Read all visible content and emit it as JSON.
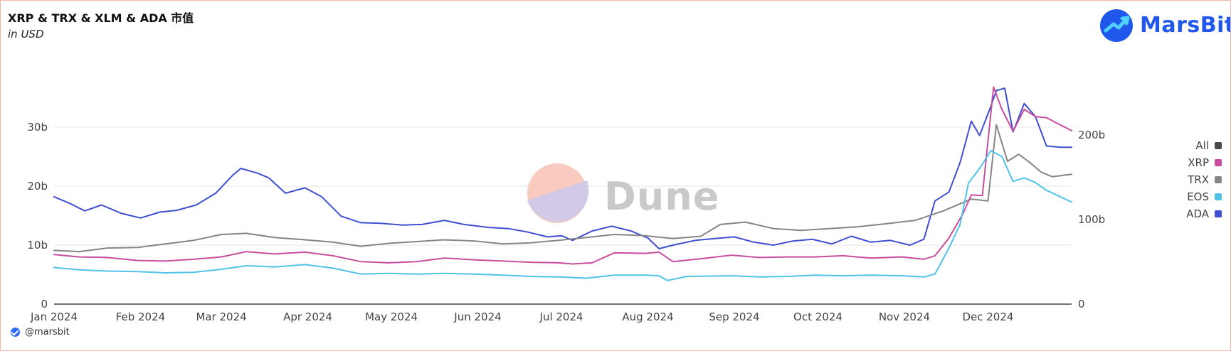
{
  "page": {
    "title": "XRP & TRX & XLM & ADA 市值",
    "subtitle": "in USD",
    "brand_name": "MarsBit",
    "watermark": "Dune",
    "handle": "@marsbit"
  },
  "colors": {
    "background": "#ffffff",
    "border": "#f2b7a8",
    "grid": "#e6e6e6",
    "axis": "#222222",
    "brand": "#1f58ea"
  },
  "chart_data": {
    "type": "line",
    "title": "XRP & TRX & XLM & ADA 市值",
    "subtitle": "in USD",
    "x_ticks": [
      "Jan 2024",
      "Feb 2024",
      "Mar 2024",
      "Apr 2024",
      "May 2024",
      "Jun 2024",
      "Jul 2024",
      "Aug 2024",
      "Sep 2024",
      "Oct 2024",
      "Nov 2024",
      "Dec 2024"
    ],
    "x_range": [
      "2024-01-01",
      "2024-12-31"
    ],
    "left_axis": {
      "ticks": [
        0,
        10,
        20,
        30
      ],
      "tick_labels": [
        "0",
        "10b",
        "20b",
        "30b"
      ],
      "range": [
        0,
        30
      ]
    },
    "right_axis": {
      "ticks": [
        0,
        100,
        200
      ],
      "tick_labels": [
        "0",
        "100b",
        "200b"
      ],
      "range": [
        0,
        200
      ]
    },
    "grid": true,
    "legend_position": "right",
    "legend": [
      {
        "name": "All",
        "color": "#4b4b4b"
      },
      {
        "name": "XRP",
        "color": "#c94d9d"
      },
      {
        "name": "TRX",
        "color": "#858585"
      },
      {
        "name": "EOS",
        "color": "#4fc3e8"
      },
      {
        "name": "ADA",
        "color": "#3f4fd1"
      }
    ],
    "series": [
      {
        "name": "ADA",
        "color": "#3f4fd1",
        "axis": "left",
        "points": [
          [
            "2024-01-01",
            18.2
          ],
          [
            "2024-01-07",
            17.0
          ],
          [
            "2024-01-12",
            15.8
          ],
          [
            "2024-01-18",
            16.8
          ],
          [
            "2024-01-25",
            15.4
          ],
          [
            "2024-02-01",
            14.6
          ],
          [
            "2024-02-08",
            15.6
          ],
          [
            "2024-02-14",
            15.9
          ],
          [
            "2024-02-21",
            16.8
          ],
          [
            "2024-02-28",
            18.8
          ],
          [
            "2024-03-05",
            21.8
          ],
          [
            "2024-03-08",
            23.0
          ],
          [
            "2024-03-14",
            22.2
          ],
          [
            "2024-03-18",
            21.4
          ],
          [
            "2024-03-24",
            18.8
          ],
          [
            "2024-03-31",
            19.7
          ],
          [
            "2024-04-06",
            18.2
          ],
          [
            "2024-04-13",
            14.9
          ],
          [
            "2024-04-20",
            13.8
          ],
          [
            "2024-04-27",
            13.7
          ],
          [
            "2024-05-05",
            13.4
          ],
          [
            "2024-05-12",
            13.5
          ],
          [
            "2024-05-20",
            14.2
          ],
          [
            "2024-05-27",
            13.5
          ],
          [
            "2024-06-05",
            13.0
          ],
          [
            "2024-06-12",
            12.8
          ],
          [
            "2024-06-19",
            12.2
          ],
          [
            "2024-06-26",
            11.4
          ],
          [
            "2024-07-01",
            11.6
          ],
          [
            "2024-07-05",
            10.8
          ],
          [
            "2024-07-12",
            12.4
          ],
          [
            "2024-07-19",
            13.2
          ],
          [
            "2024-07-26",
            12.4
          ],
          [
            "2024-08-01",
            11.2
          ],
          [
            "2024-08-05",
            9.4
          ],
          [
            "2024-08-10",
            10.0
          ],
          [
            "2024-08-18",
            10.8
          ],
          [
            "2024-08-25",
            11.1
          ],
          [
            "2024-09-01",
            11.4
          ],
          [
            "2024-09-08",
            10.5
          ],
          [
            "2024-09-15",
            10.0
          ],
          [
            "2024-09-22",
            10.7
          ],
          [
            "2024-09-29",
            11.0
          ],
          [
            "2024-10-06",
            10.2
          ],
          [
            "2024-10-13",
            11.5
          ],
          [
            "2024-10-20",
            10.5
          ],
          [
            "2024-10-27",
            10.8
          ],
          [
            "2024-11-03",
            10.0
          ],
          [
            "2024-11-08",
            11.0
          ],
          [
            "2024-11-12",
            17.5
          ],
          [
            "2024-11-17",
            19.0
          ],
          [
            "2024-11-21",
            24.0
          ],
          [
            "2024-11-25",
            31.0
          ],
          [
            "2024-11-28",
            28.6
          ],
          [
            "2024-12-02",
            33.5
          ],
          [
            "2024-12-04",
            36.2
          ],
          [
            "2024-12-07",
            36.6
          ],
          [
            "2024-12-10",
            29.2
          ],
          [
            "2024-12-14",
            34.0
          ],
          [
            "2024-12-18",
            31.8
          ],
          [
            "2024-12-22",
            26.8
          ],
          [
            "2024-12-27",
            26.6
          ],
          [
            "2024-12-31",
            26.6
          ]
        ]
      },
      {
        "name": "TRX",
        "color": "#858585",
        "axis": "left",
        "points": [
          [
            "2024-01-01",
            9.1
          ],
          [
            "2024-01-10",
            8.9
          ],
          [
            "2024-01-20",
            9.5
          ],
          [
            "2024-01-31",
            9.6
          ],
          [
            "2024-02-10",
            10.2
          ],
          [
            "2024-02-20",
            10.8
          ],
          [
            "2024-03-01",
            11.8
          ],
          [
            "2024-03-10",
            12.0
          ],
          [
            "2024-03-20",
            11.3
          ],
          [
            "2024-03-31",
            10.9
          ],
          [
            "2024-04-10",
            10.5
          ],
          [
            "2024-04-20",
            9.8
          ],
          [
            "2024-04-30",
            10.3
          ],
          [
            "2024-05-10",
            10.6
          ],
          [
            "2024-05-20",
            10.9
          ],
          [
            "2024-05-31",
            10.7
          ],
          [
            "2024-06-10",
            10.2
          ],
          [
            "2024-06-20",
            10.4
          ],
          [
            "2024-06-30",
            10.8
          ],
          [
            "2024-07-10",
            11.3
          ],
          [
            "2024-07-20",
            11.8
          ],
          [
            "2024-07-31",
            11.6
          ],
          [
            "2024-08-10",
            11.1
          ],
          [
            "2024-08-20",
            11.5
          ],
          [
            "2024-08-27",
            13.5
          ],
          [
            "2024-09-05",
            13.9
          ],
          [
            "2024-09-15",
            12.8
          ],
          [
            "2024-09-25",
            12.5
          ],
          [
            "2024-10-05",
            12.8
          ],
          [
            "2024-10-15",
            13.1
          ],
          [
            "2024-10-25",
            13.6
          ],
          [
            "2024-11-05",
            14.2
          ],
          [
            "2024-11-15",
            15.8
          ],
          [
            "2024-11-25",
            17.8
          ],
          [
            "2024-12-01",
            17.5
          ],
          [
            "2024-12-04",
            30.4
          ],
          [
            "2024-12-08",
            24.2
          ],
          [
            "2024-12-12",
            25.4
          ],
          [
            "2024-12-16",
            24.0
          ],
          [
            "2024-12-20",
            22.4
          ],
          [
            "2024-12-24",
            21.6
          ],
          [
            "2024-12-31",
            22.0
          ]
        ]
      },
      {
        "name": "XRP",
        "color": "#c94d9d",
        "axis": "left",
        "points": [
          [
            "2024-01-01",
            8.4
          ],
          [
            "2024-01-10",
            8.0
          ],
          [
            "2024-01-20",
            7.9
          ],
          [
            "2024-01-31",
            7.4
          ],
          [
            "2024-02-10",
            7.3
          ],
          [
            "2024-02-20",
            7.6
          ],
          [
            "2024-03-01",
            8.0
          ],
          [
            "2024-03-10",
            8.9
          ],
          [
            "2024-03-20",
            8.5
          ],
          [
            "2024-03-31",
            8.8
          ],
          [
            "2024-04-10",
            8.2
          ],
          [
            "2024-04-20",
            7.2
          ],
          [
            "2024-04-30",
            7.0
          ],
          [
            "2024-05-10",
            7.2
          ],
          [
            "2024-05-20",
            7.8
          ],
          [
            "2024-05-31",
            7.5
          ],
          [
            "2024-06-10",
            7.3
          ],
          [
            "2024-06-20",
            7.1
          ],
          [
            "2024-06-30",
            7.0
          ],
          [
            "2024-07-05",
            6.8
          ],
          [
            "2024-07-12",
            7.0
          ],
          [
            "2024-07-20",
            8.7
          ],
          [
            "2024-07-31",
            8.6
          ],
          [
            "2024-08-05",
            8.8
          ],
          [
            "2024-08-10",
            7.2
          ],
          [
            "2024-08-20",
            7.7
          ],
          [
            "2024-08-31",
            8.3
          ],
          [
            "2024-09-10",
            7.9
          ],
          [
            "2024-09-20",
            8.0
          ],
          [
            "2024-09-30",
            8.0
          ],
          [
            "2024-10-10",
            8.2
          ],
          [
            "2024-10-20",
            7.8
          ],
          [
            "2024-10-31",
            8.0
          ],
          [
            "2024-11-08",
            7.6
          ],
          [
            "2024-11-12",
            8.2
          ],
          [
            "2024-11-17",
            11.2
          ],
          [
            "2024-11-22",
            15.3
          ],
          [
            "2024-11-25",
            18.5
          ],
          [
            "2024-11-29",
            18.4
          ],
          [
            "2024-12-03",
            36.8
          ],
          [
            "2024-12-06",
            33.0
          ],
          [
            "2024-12-10",
            29.3
          ],
          [
            "2024-12-14",
            33.0
          ],
          [
            "2024-12-18",
            31.8
          ],
          [
            "2024-12-22",
            31.6
          ],
          [
            "2024-12-26",
            30.6
          ],
          [
            "2024-12-31",
            29.4
          ]
        ]
      },
      {
        "name": "EOS",
        "color": "#4fc3e8",
        "axis": "left",
        "points": [
          [
            "2024-01-01",
            6.2
          ],
          [
            "2024-01-10",
            5.8
          ],
          [
            "2024-01-20",
            5.6
          ],
          [
            "2024-01-31",
            5.5
          ],
          [
            "2024-02-10",
            5.3
          ],
          [
            "2024-02-20",
            5.4
          ],
          [
            "2024-03-01",
            5.9
          ],
          [
            "2024-03-10",
            6.5
          ],
          [
            "2024-03-20",
            6.3
          ],
          [
            "2024-03-31",
            6.7
          ],
          [
            "2024-04-10",
            6.1
          ],
          [
            "2024-04-20",
            5.1
          ],
          [
            "2024-04-30",
            5.2
          ],
          [
            "2024-05-10",
            5.1
          ],
          [
            "2024-05-20",
            5.2
          ],
          [
            "2024-05-31",
            5.1
          ],
          [
            "2024-06-10",
            4.9
          ],
          [
            "2024-06-20",
            4.7
          ],
          [
            "2024-06-30",
            4.6
          ],
          [
            "2024-07-10",
            4.4
          ],
          [
            "2024-07-20",
            4.9
          ],
          [
            "2024-07-31",
            4.9
          ],
          [
            "2024-08-05",
            4.8
          ],
          [
            "2024-08-08",
            4.0
          ],
          [
            "2024-08-15",
            4.7
          ],
          [
            "2024-08-31",
            4.8
          ],
          [
            "2024-09-10",
            4.6
          ],
          [
            "2024-09-20",
            4.7
          ],
          [
            "2024-09-30",
            4.9
          ],
          [
            "2024-10-10",
            4.8
          ],
          [
            "2024-10-20",
            4.9
          ],
          [
            "2024-10-31",
            4.8
          ],
          [
            "2024-11-08",
            4.6
          ],
          [
            "2024-11-12",
            5.1
          ],
          [
            "2024-11-17",
            9.5
          ],
          [
            "2024-11-21",
            13.5
          ],
          [
            "2024-11-24",
            20.5
          ],
          [
            "2024-11-28",
            23.0
          ],
          [
            "2024-12-02",
            26.0
          ],
          [
            "2024-12-06",
            25.0
          ],
          [
            "2024-12-10",
            20.8
          ],
          [
            "2024-12-14",
            21.4
          ],
          [
            "2024-12-18",
            20.6
          ],
          [
            "2024-12-22",
            19.3
          ],
          [
            "2024-12-26",
            18.4
          ],
          [
            "2024-12-31",
            17.3
          ]
        ]
      }
    ]
  }
}
